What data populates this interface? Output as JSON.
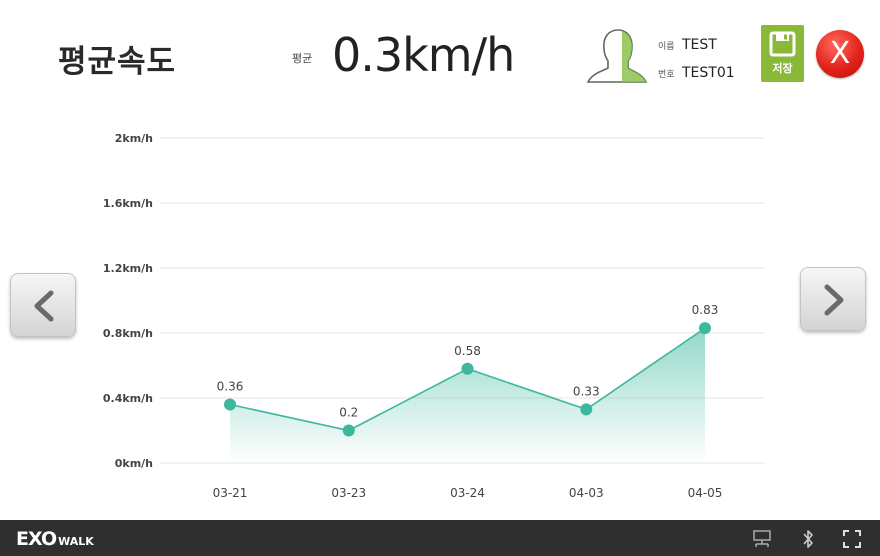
{
  "header": {
    "title": "평균속도",
    "avg_label": "평균",
    "avg_value": "0.3km/h",
    "user": {
      "name_label": "이름",
      "name": "TEST",
      "id_label": "번호",
      "id": "TEST01"
    },
    "save_label": "저장",
    "close_label": "X"
  },
  "footer": {
    "brand": "EXO",
    "brand_sub": "WALK"
  },
  "icons": {
    "prev": "chevron-left-icon",
    "next": "chevron-right-icon",
    "save": "floppy-disk-icon",
    "close": "close-icon",
    "avatar": "user-head-icon",
    "network": "network-icon",
    "bluetooth": "bluetooth-icon",
    "fullscreen": "fullscreen-icon"
  },
  "colors": {
    "accent": "#3cb89c",
    "save": "#8ab838",
    "close": "#e2231a",
    "footer": "#2f2f2f"
  },
  "chart_data": {
    "type": "area",
    "categories": [
      "03-21",
      "03-23",
      "03-24",
      "04-03",
      "04-05"
    ],
    "values": [
      0.36,
      0.2,
      0.58,
      0.33,
      0.83
    ],
    "value_labels": [
      "0.36",
      "0.2",
      "0.58",
      "0.33",
      "0.83"
    ],
    "yticks": [
      "0km/h",
      "0.4km/h",
      "0.8km/h",
      "1.2km/h",
      "1.6km/h",
      "2km/h"
    ],
    "ylim": [
      0,
      2
    ],
    "grid": true,
    "legend": "none"
  }
}
